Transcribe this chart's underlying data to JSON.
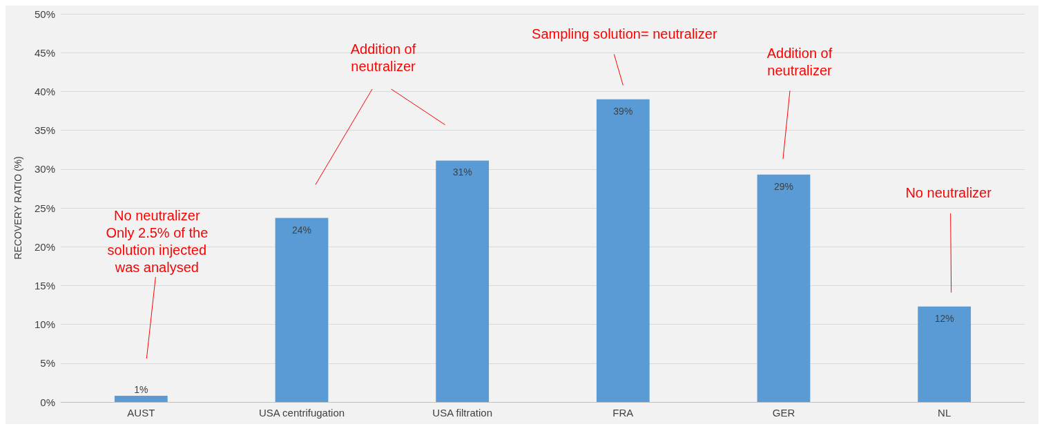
{
  "chart_data": {
    "type": "bar",
    "ylabel": "RECOVERY RATIO (%)",
    "categories": [
      "AUST",
      "USA centrifugation",
      "USA filtration",
      "FRA",
      "GER",
      "NL"
    ],
    "values": [
      0.8,
      23.7,
      31.1,
      39.0,
      29.3,
      12.3
    ],
    "value_labels": [
      "1%",
      "24%",
      "31%",
      "39%",
      "29%",
      "12%"
    ],
    "color": "#5b9bd5",
    "ylim": [
      0,
      50
    ],
    "yticks": [
      {
        "value": 0,
        "label": "0%"
      },
      {
        "value": 5,
        "label": "5%"
      },
      {
        "value": 10,
        "label": "10%"
      },
      {
        "value": 15,
        "label": "15%"
      },
      {
        "value": 20,
        "label": "20%"
      },
      {
        "value": 25,
        "label": "25%"
      },
      {
        "value": 30,
        "label": "30%"
      },
      {
        "value": 35,
        "label": "35%"
      },
      {
        "value": 40,
        "label": "40%"
      },
      {
        "value": 45,
        "label": "45%"
      },
      {
        "value": 50,
        "label": "50%"
      }
    ],
    "grid": "y",
    "annotations": [
      "No neutralizer Only 2.5% of the solution injected was analysed",
      "Addition of neutralizer",
      "Sampling solution= neutralizer",
      "Addition of neutralizer",
      "No neutralizer"
    ]
  }
}
